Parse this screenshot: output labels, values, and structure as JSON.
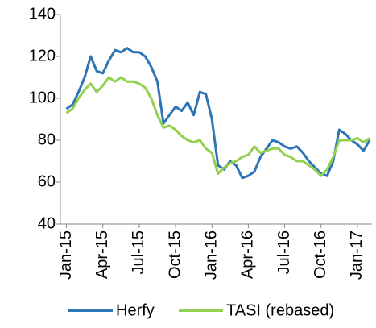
{
  "chart_data": {
    "type": "line",
    "x": [
      0,
      0.5,
      1,
      1.5,
      2,
      2.5,
      3,
      3.5,
      4,
      4.5,
      5,
      5.5,
      6,
      6.5,
      7,
      7.5,
      8,
      8.5,
      9,
      9.5,
      10,
      10.5,
      11,
      11.5,
      12,
      12.5,
      13,
      13.5,
      14,
      14.5,
      15,
      15.5,
      16,
      16.5,
      17,
      17.5,
      18,
      18.5,
      19,
      19.5,
      20,
      20.5,
      21,
      21.5,
      22,
      22.5,
      23,
      23.5,
      24,
      24.5,
      25
    ],
    "series": [
      {
        "name": "Herfy",
        "color": "#2e75b6",
        "values": [
          95,
          97,
          103,
          110,
          120,
          113,
          112,
          118,
          123,
          122,
          124,
          122,
          122,
          120,
          115,
          108,
          88,
          92,
          96,
          94,
          98,
          92,
          103,
          102,
          90,
          68,
          66,
          70,
          68,
          62,
          63,
          65,
          72,
          76,
          80,
          79,
          77,
          76,
          77,
          74,
          70,
          67,
          64,
          63,
          70,
          85,
          83,
          80,
          78,
          75,
          80
        ]
      },
      {
        "name": "TASI (rebased)",
        "color": "#92d050",
        "values": [
          93,
          95,
          100,
          104,
          107,
          103,
          106,
          110,
          108,
          110,
          108,
          108,
          107,
          105,
          100,
          92,
          86,
          87,
          85,
          82,
          80,
          79,
          80,
          76,
          74,
          64,
          67,
          69,
          70,
          72,
          73,
          77,
          74,
          75,
          76,
          76,
          73,
          72,
          70,
          70,
          68,
          66,
          63,
          66,
          72,
          80,
          80,
          80,
          81,
          79,
          81
        ]
      }
    ],
    "xlim": [
      -0.5,
      25.2
    ],
    "xticks": [
      {
        "value": 0,
        "label": "Jan-15"
      },
      {
        "value": 3,
        "label": "Apr-15"
      },
      {
        "value": 6,
        "label": "Jul-15"
      },
      {
        "value": 9,
        "label": "Oct-15"
      },
      {
        "value": 12,
        "label": "Jan-16"
      },
      {
        "value": 15,
        "label": "Apr-16"
      },
      {
        "value": 18,
        "label": "Jul-16"
      },
      {
        "value": 21,
        "label": "Oct-16"
      },
      {
        "value": 24,
        "label": "Jan-17"
      }
    ],
    "ylim": [
      40,
      140
    ],
    "yticks": [
      40,
      60,
      80,
      100,
      120,
      140
    ],
    "legend": "bottom"
  }
}
